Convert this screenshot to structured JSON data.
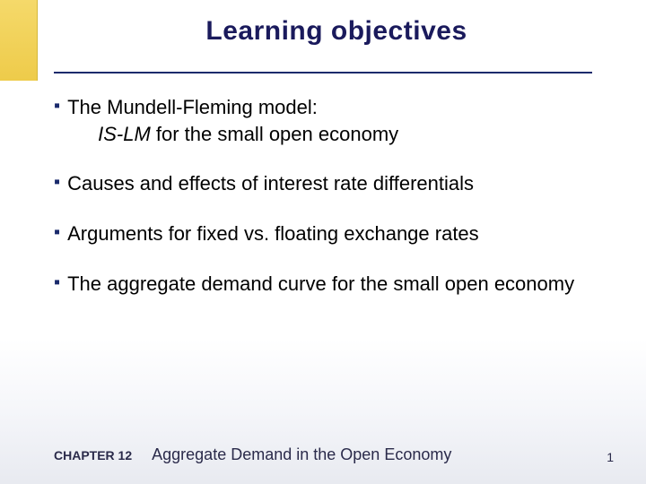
{
  "slide": {
    "title": "Learning objectives",
    "title_color": "#1a1a5c",
    "title_fontsize": 30,
    "underline_color": "#1a2a6c",
    "gold_strip_color_top": "#f5d96a",
    "gold_strip_color_bottom": "#eecb4a",
    "background_gradient_top": "#ffffff",
    "background_gradient_bottom": "#e8eaf0",
    "bullet_color": "#1a2a6c",
    "body_fontsize": 22,
    "bullets": [
      {
        "line1": "The Mundell-Fleming model:",
        "line2_italic": "IS-LM",
        "line2_rest": " for the small open economy"
      },
      {
        "line1": "Causes and effects of interest rate differentials"
      },
      {
        "line1": "Arguments for fixed vs. floating exchange rates"
      },
      {
        "line1": "The aggregate demand curve for the small open economy"
      }
    ]
  },
  "footer": {
    "chapter_label": "CHAPTER 12",
    "chapter_title": "Aggregate Demand in the Open Economy",
    "page_number": "1",
    "text_color": "#2a2a4a",
    "label_fontsize": 14,
    "title_fontsize": 18
  }
}
